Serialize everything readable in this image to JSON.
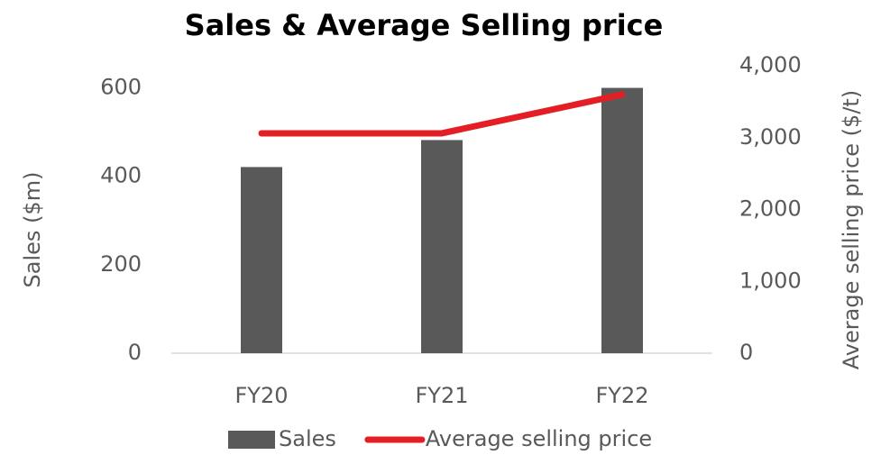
{
  "chart_data": {
    "type": "bar_line",
    "title": "Sales & Average Selling price",
    "ylabel": "Sales ($m)",
    "y2label": "Average selling price ($/t)",
    "categories": [
      "FY20",
      "FY21",
      "FY22"
    ],
    "series": [
      {
        "name": "Sales",
        "type": "bar",
        "color": "#595959",
        "values": [
          421,
          482,
          600
        ]
      },
      {
        "name": "Average selling price",
        "type": "line",
        "axis": "y2",
        "color": "#e31e24",
        "values": [
          3060,
          3060,
          3600
        ]
      }
    ],
    "ylim": [
      0,
      650
    ],
    "yticks": [
      0,
      200,
      400,
      600
    ],
    "y2lim": [
      0,
      4000
    ],
    "y2ticks": [
      {
        "value": 0,
        "label": "0"
      },
      {
        "value": 1000,
        "label": "1,000"
      },
      {
        "value": 2000,
        "label": "2,000"
      },
      {
        "value": 3000,
        "label": "3,000"
      },
      {
        "value": 4000,
        "label": "4,000"
      }
    ],
    "legend": "bottom"
  }
}
